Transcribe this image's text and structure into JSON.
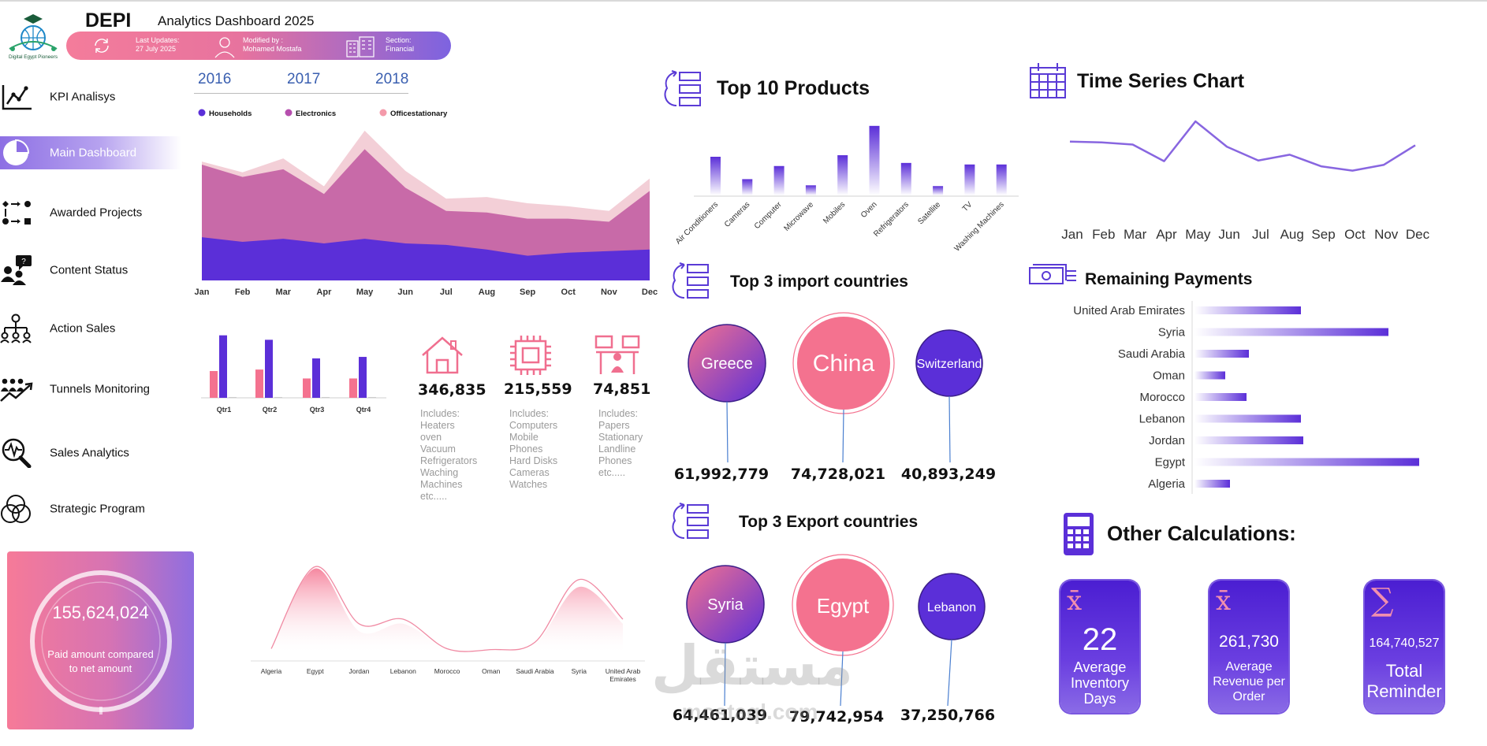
{
  "header": {
    "brand": "DEPI",
    "title": "Analytics Dashboard 2025",
    "logo_caption": "Digital Egypt Pioneers",
    "last_update_label": "Last Updates:",
    "last_update_value": "27 July 2025",
    "modified_label": "Modified by :",
    "modified_value": "Mohamed Mostafa",
    "section_label": "Section:",
    "section_value": "Financial"
  },
  "sidebar": {
    "items": [
      {
        "label": "KPI Analisys",
        "icon": "line-chart-icon"
      },
      {
        "label": "Main Dashboard",
        "icon": "pie-chart-icon",
        "active": true
      },
      {
        "label": "Awarded Projects",
        "icon": "workflow-icon"
      },
      {
        "label": "Content Status",
        "icon": "people-chat-icon"
      },
      {
        "label": "Action Sales",
        "icon": "org-chart-icon"
      },
      {
        "label": "Tunnels Monitoring",
        "icon": "team-growth-icon"
      },
      {
        "label": "Sales Analytics",
        "icon": "magnifier-pulse-icon"
      },
      {
        "label": "Strategic Program",
        "icon": "venn-icon"
      }
    ]
  },
  "paid_card": {
    "value": "155,624,024",
    "label_line1": "Paid amount compared",
    "label_line2": "to net amount"
  },
  "kpis": [
    {
      "value": "346,835",
      "includes": "Includes:\nHeaters\noven\nVacuum\nRefrigerators\nWaching\nMachines\netc.....",
      "icon": "house-icon"
    },
    {
      "value": "215,559",
      "includes": "Includes:\nComputers\nMobile\nPhones\nHard Disks\nCameras\nWatches",
      "icon": "cpu-chip-icon"
    },
    {
      "value": "74,851",
      "includes": "Includes:\nPapers\nStationary\nLandline\nPhones\netc.....",
      "icon": "desk-icon"
    }
  ],
  "sections": {
    "top_products": "Top 10 Products",
    "time_series": "Time Series Chart",
    "imports": "Top 3 import countries",
    "exports": "Top 3 Export countries",
    "remaining": "Remaining Payments",
    "other": "Other Calculations:"
  },
  "imports": [
    {
      "country": "Greece",
      "value": "61,992,779"
    },
    {
      "country": "China",
      "value": "74,728,021"
    },
    {
      "country": "Switzerland",
      "value": "40,893,249"
    }
  ],
  "exports": [
    {
      "country": "Syria",
      "value": "64,461,039"
    },
    {
      "country": "Egypt",
      "value": "79,742,954"
    },
    {
      "country": "Lebanon",
      "value": "37,250,766"
    }
  ],
  "stats": [
    {
      "symbol": "x̄",
      "value": "22",
      "line1": "Average",
      "line2": "Inventory",
      "line3": "Days"
    },
    {
      "symbol": "x̄",
      "value": "261,730",
      "line1": "Average",
      "line2": "Revenue per",
      "line3": "Order"
    },
    {
      "symbol": "∑",
      "value": "164,740,527",
      "line1": "Total",
      "line2": "Reminder",
      "line3": ""
    }
  ],
  "watermark": {
    "text": "مستقل",
    "subtext": "mostaql.com"
  },
  "colors": {
    "purple": "#5b2fd8",
    "violet": "#7f5ce0",
    "pink": "#f4728f",
    "rose": "#c86aa8",
    "lightpink": "#f3cfd7"
  },
  "chart_data": [
    {
      "id": "area",
      "type": "area",
      "x": [
        "Jan",
        "Feb",
        "Mar",
        "Apr",
        "May",
        "Jun",
        "Jul",
        "Aug",
        "Sep",
        "Oct",
        "Nov",
        "Dec"
      ],
      "year_tabs": [
        "2016",
        "2017",
        "2018"
      ],
      "series": [
        {
          "name": "Households",
          "values": [
            28,
            25,
            27,
            24,
            27,
            24,
            23,
            20,
            16,
            18,
            19,
            20
          ]
        },
        {
          "name": "Electronics",
          "values": [
            75,
            67,
            72,
            56,
            85,
            60,
            45,
            44,
            40,
            40,
            38,
            58
          ]
        },
        {
          "name": "Officestationary",
          "values": [
            77,
            70,
            79,
            61,
            97,
            71,
            53,
            54,
            50,
            48,
            45,
            66
          ]
        }
      ],
      "ylim": [
        0,
        100
      ]
    },
    {
      "id": "quarters",
      "type": "bar",
      "categories": [
        "Qtr1",
        "Qtr2",
        "Qtr3",
        "Qtr4"
      ],
      "series": [
        {
          "values": [
            36,
            38,
            26,
            26
          ]
        },
        {
          "values": [
            84,
            78,
            53,
            55
          ]
        },
        {
          "values": [
            1,
            1,
            1,
            1
          ]
        }
      ],
      "ylim": [
        0,
        90
      ]
    },
    {
      "id": "exports_curve",
      "type": "area",
      "categories": [
        "Algeria",
        "Egypt",
        "Jordan",
        "Lebanon",
        "Morocco",
        "Oman",
        "Saudi Arabia",
        "Syria",
        "United Arab Emirates"
      ],
      "series": [
        {
          "values": [
            3,
            92,
            30,
            35,
            3,
            2,
            10,
            78,
            35
          ]
        },
        {
          "values": [
            3,
            90,
            22,
            30,
            3,
            2,
            8,
            70,
            30
          ]
        }
      ],
      "ylim": [
        0,
        100
      ]
    },
    {
      "id": "top_products",
      "type": "bar",
      "categories": [
        "Air Conditioners",
        "Cameras",
        "Computer",
        "Microwave",
        "Mobiles",
        "Oven",
        "Refrigerators",
        "Satellite",
        "TV",
        "Washing Machines"
      ],
      "values": [
        50,
        21,
        38,
        13,
        52,
        90,
        42,
        12,
        40,
        40
      ],
      "ylim": [
        0,
        100
      ]
    },
    {
      "id": "time_series",
      "type": "line",
      "x": [
        "Jan",
        "Feb",
        "Mar",
        "Apr",
        "May",
        "Jun",
        "Jul",
        "Aug",
        "Sep",
        "Oct",
        "Nov",
        "Dec"
      ],
      "values": [
        60,
        59,
        56,
        33,
        88,
        53,
        34,
        42,
        26,
        20,
        28,
        55
      ],
      "ylim": [
        0,
        100
      ]
    },
    {
      "id": "remaining_payments",
      "type": "bar",
      "categories": [
        "United Arab Emirates",
        "Syria",
        "Saudi Arabia",
        "Oman",
        "Morocco",
        "Lebanon",
        "Jordan",
        "Egypt",
        "Algeria"
      ],
      "values": [
        45,
        82,
        23,
        13,
        22,
        45,
        46,
        95,
        15
      ],
      "ylim": [
        0,
        100
      ]
    }
  ]
}
